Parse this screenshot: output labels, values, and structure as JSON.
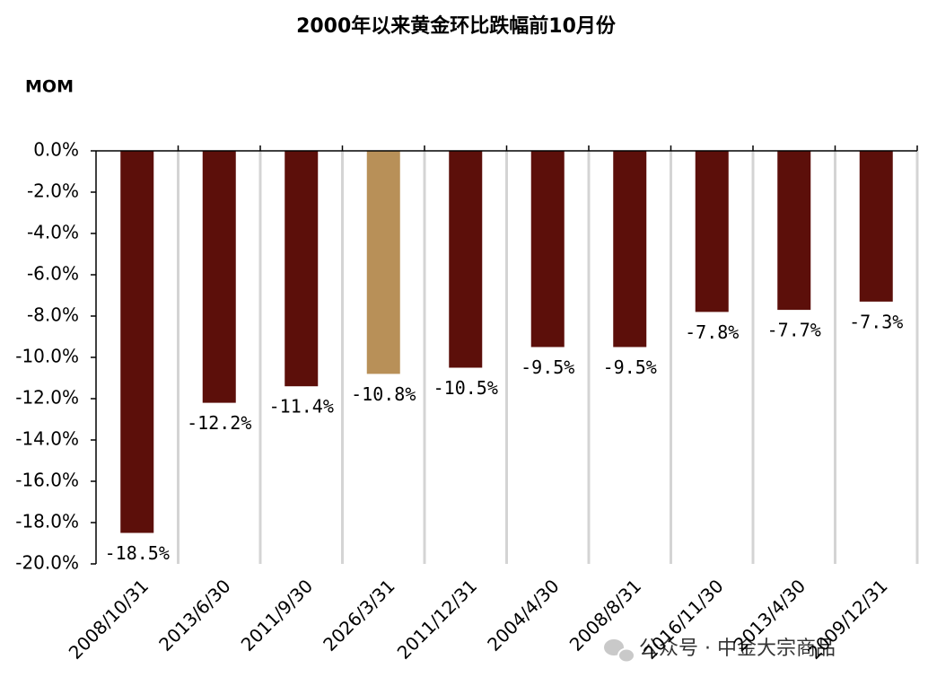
{
  "chart_data": {
    "type": "bar",
    "title": "2000年以来黄金环比跌幅前10月份",
    "y_label": "MOM",
    "categories": [
      "2008/10/31",
      "2013/6/30",
      "2011/9/30",
      "2026/3/31",
      "2011/12/31",
      "2004/4/30",
      "2008/8/31",
      "2016/11/30",
      "2013/4/30",
      "2009/12/31"
    ],
    "values": [
      -18.5,
      -12.2,
      -11.4,
      -10.8,
      -10.5,
      -9.5,
      -9.5,
      -7.8,
      -7.7,
      -7.3
    ],
    "value_labels": [
      "-18.5%",
      "-12.2%",
      "-11.4%",
      "-10.8%",
      "-10.5%",
      "-9.5%",
      "-9.5%",
      "-7.8%",
      "-7.7%",
      "-7.3%"
    ],
    "colors": [
      "#5c0f0a",
      "#5c0f0a",
      "#5c0f0a",
      "#b89058",
      "#5c0f0a",
      "#5c0f0a",
      "#5c0f0a",
      "#5c0f0a",
      "#5c0f0a",
      "#5c0f0a"
    ],
    "ylim": [
      -20,
      0
    ],
    "yticks": [
      {
        "value": 0,
        "label": "0.0%"
      },
      {
        "value": -2,
        "label": "-2.0%"
      },
      {
        "value": -4,
        "label": "-4.0%"
      },
      {
        "value": -6,
        "label": "-6.0%"
      },
      {
        "value": -8,
        "label": "-8.0%"
      },
      {
        "value": -10,
        "label": "-10.0%"
      },
      {
        "value": -12,
        "label": "-12.0%"
      },
      {
        "value": -14,
        "label": "-14.0%"
      },
      {
        "value": -16,
        "label": "-16.0%"
      },
      {
        "value": -18,
        "label": "-18.0%"
      },
      {
        "value": -20,
        "label": "-20.0%"
      }
    ],
    "grid": true,
    "watermark": "公众号 · 中金大宗商品"
  }
}
